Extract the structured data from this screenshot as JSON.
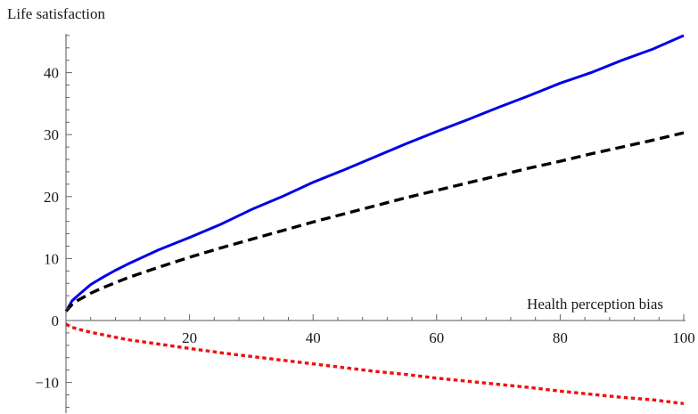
{
  "chart_data": {
    "type": "line",
    "title": "",
    "xlabel": "Health perception bias",
    "ylabel": "Life satisfaction",
    "xlim": [
      0,
      100
    ],
    "ylim": [
      -14.5,
      46.8
    ],
    "grid": false,
    "x_ticks": [
      20,
      40,
      60,
      80,
      100
    ],
    "x_tick_labels": [
      "20",
      "40",
      "60",
      "80",
      "100"
    ],
    "y_ticks": [
      -10,
      0,
      10,
      20,
      30,
      40
    ],
    "y_tick_labels": [
      "−10",
      "0",
      "10",
      "20",
      "30",
      "40"
    ],
    "x_minor_step": 4,
    "y_minor_step": 2,
    "x": [
      0,
      1,
      2,
      4,
      6,
      8,
      10,
      15,
      20,
      25,
      30,
      35,
      40,
      45,
      50,
      55,
      60,
      65,
      70,
      75,
      80,
      85,
      90,
      95,
      100
    ],
    "series": [
      {
        "color": "#0000e6",
        "dash": "solid",
        "values": [
          1.5,
          3.2,
          4.1,
          5.8,
          7.0,
          8.1,
          9.1,
          11.4,
          13.4,
          15.5,
          17.9,
          20.0,
          22.3,
          24.3,
          26.4,
          28.5,
          30.5,
          32.4,
          34.4,
          36.3,
          38.3,
          40.0,
          42.0,
          43.8,
          46.0
        ]
      },
      {
        "color": "#000000",
        "dash": "dashed",
        "values": [
          1.5,
          2.6,
          3.3,
          4.4,
          5.3,
          6.1,
          6.9,
          8.6,
          10.2,
          11.7,
          13.1,
          14.5,
          15.9,
          17.2,
          18.5,
          19.8,
          21.0,
          22.2,
          23.4,
          24.6,
          25.7,
          26.9,
          28.0,
          29.1,
          30.3
        ]
      },
      {
        "color": "#ee1111",
        "dash": "dotted",
        "values": [
          -0.6,
          -1.1,
          -1.4,
          -1.9,
          -2.3,
          -2.7,
          -3.1,
          -3.8,
          -4.5,
          -5.2,
          -5.8,
          -6.4,
          -7.0,
          -7.6,
          -8.2,
          -8.7,
          -9.3,
          -9.8,
          -10.3,
          -10.8,
          -11.4,
          -11.9,
          -12.4,
          -12.8,
          -13.4
        ]
      }
    ]
  }
}
